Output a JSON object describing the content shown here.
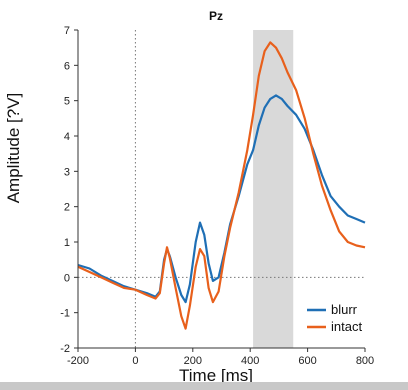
{
  "chart_data": {
    "type": "line",
    "title": "Pz",
    "xlabel": "Time [ms]",
    "ylabel": "Amplitude [?V]",
    "xlim": [
      -200,
      800
    ],
    "ylim": [
      -2,
      7
    ],
    "xticks": [
      -200,
      0,
      200,
      400,
      600,
      800
    ],
    "yticks": [
      -2,
      -1,
      0,
      1,
      2,
      3,
      4,
      5,
      6,
      7
    ],
    "shaded_region": [
      410,
      550
    ],
    "reference_lines": {
      "x": 0,
      "y": 0
    },
    "legend_position": "bottom-right",
    "series": [
      {
        "name": "blurr",
        "color": "#1f6fb5",
        "points": [
          [
            -200,
            0.35
          ],
          [
            -160,
            0.25
          ],
          [
            -120,
            0.05
          ],
          [
            -80,
            -0.1
          ],
          [
            -40,
            -0.25
          ],
          [
            0,
            -0.35
          ],
          [
            40,
            -0.45
          ],
          [
            70,
            -0.55
          ],
          [
            85,
            -0.4
          ],
          [
            100,
            0.5
          ],
          [
            110,
            0.8
          ],
          [
            120,
            0.6
          ],
          [
            140,
            0.0
          ],
          [
            160,
            -0.5
          ],
          [
            175,
            -0.7
          ],
          [
            190,
            -0.2
          ],
          [
            210,
            1.0
          ],
          [
            225,
            1.55
          ],
          [
            240,
            1.2
          ],
          [
            255,
            0.4
          ],
          [
            270,
            -0.1
          ],
          [
            290,
            0.0
          ],
          [
            310,
            0.7
          ],
          [
            330,
            1.5
          ],
          [
            360,
            2.3
          ],
          [
            390,
            3.2
          ],
          [
            410,
            3.6
          ],
          [
            430,
            4.3
          ],
          [
            450,
            4.8
          ],
          [
            470,
            5.05
          ],
          [
            490,
            5.15
          ],
          [
            510,
            5.05
          ],
          [
            530,
            4.85
          ],
          [
            560,
            4.6
          ],
          [
            590,
            4.2
          ],
          [
            620,
            3.6
          ],
          [
            650,
            2.9
          ],
          [
            680,
            2.3
          ],
          [
            710,
            2.0
          ],
          [
            740,
            1.75
          ],
          [
            770,
            1.65
          ],
          [
            800,
            1.55
          ]
        ]
      },
      {
        "name": "intact",
        "color": "#e8601c",
        "points": [
          [
            -200,
            0.3
          ],
          [
            -160,
            0.15
          ],
          [
            -120,
            0.0
          ],
          [
            -80,
            -0.15
          ],
          [
            -40,
            -0.3
          ],
          [
            0,
            -0.35
          ],
          [
            40,
            -0.5
          ],
          [
            70,
            -0.6
          ],
          [
            85,
            -0.45
          ],
          [
            100,
            0.4
          ],
          [
            110,
            0.85
          ],
          [
            120,
            0.55
          ],
          [
            140,
            -0.3
          ],
          [
            160,
            -1.1
          ],
          [
            175,
            -1.45
          ],
          [
            190,
            -0.8
          ],
          [
            210,
            0.3
          ],
          [
            225,
            0.8
          ],
          [
            240,
            0.6
          ],
          [
            255,
            -0.3
          ],
          [
            270,
            -0.7
          ],
          [
            290,
            -0.4
          ],
          [
            310,
            0.6
          ],
          [
            330,
            1.4
          ],
          [
            360,
            2.4
          ],
          [
            390,
            3.6
          ],
          [
            410,
            4.6
          ],
          [
            430,
            5.7
          ],
          [
            450,
            6.4
          ],
          [
            470,
            6.65
          ],
          [
            490,
            6.5
          ],
          [
            510,
            6.2
          ],
          [
            530,
            5.8
          ],
          [
            560,
            5.3
          ],
          [
            590,
            4.5
          ],
          [
            620,
            3.5
          ],
          [
            650,
            2.6
          ],
          [
            680,
            1.9
          ],
          [
            710,
            1.3
          ],
          [
            740,
            1.0
          ],
          [
            770,
            0.9
          ],
          [
            800,
            0.85
          ]
        ]
      }
    ]
  }
}
